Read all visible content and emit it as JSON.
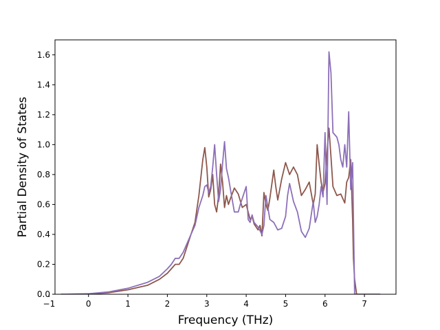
{
  "chart_data": {
    "type": "line",
    "title": "",
    "xlabel": "Frequency (THz)",
    "ylabel": "Partial Density of States",
    "xlim": [
      -0.85,
      7.8
    ],
    "ylim": [
      0.0,
      1.7
    ],
    "xticks": [
      -1,
      0,
      1,
      2,
      3,
      4,
      5,
      6,
      7
    ],
    "yticks": [
      0.0,
      0.2,
      0.4,
      0.6,
      0.8,
      1.0,
      1.2,
      1.4,
      1.6
    ],
    "xtick_labels": [
      "−1",
      "0",
      "1",
      "2",
      "3",
      "4",
      "5",
      "6",
      "7"
    ],
    "ytick_labels": [
      "0.0",
      "0.2",
      "0.4",
      "0.6",
      "0.8",
      "1.0",
      "1.2",
      "1.4",
      "1.6"
    ],
    "grid": false,
    "legend": "none",
    "series": [
      {
        "color": "#8c564b",
        "x": [
          -0.7,
          0.0,
          0.5,
          1.0,
          1.5,
          1.8,
          2.0,
          2.1,
          2.2,
          2.3,
          2.4,
          2.5,
          2.6,
          2.7,
          2.8,
          2.9,
          2.95,
          3.0,
          3.05,
          3.1,
          3.15,
          3.2,
          3.25,
          3.3,
          3.35,
          3.4,
          3.45,
          3.5,
          3.55,
          3.6,
          3.7,
          3.8,
          3.9,
          4.0,
          4.1,
          4.15,
          4.2,
          4.3,
          4.35,
          4.4,
          4.45,
          4.5,
          4.55,
          4.6,
          4.7,
          4.75,
          4.8,
          4.9,
          5.0,
          5.1,
          5.2,
          5.3,
          5.4,
          5.5,
          5.6,
          5.7,
          5.75,
          5.8,
          5.85,
          5.9,
          5.95,
          6.0,
          6.05,
          6.1,
          6.15,
          6.2,
          6.3,
          6.4,
          6.5,
          6.55,
          6.6,
          6.65,
          6.7,
          6.72,
          6.75,
          6.8,
          7.0,
          7.4
        ],
        "y": [
          0.0,
          0.002,
          0.01,
          0.03,
          0.06,
          0.1,
          0.14,
          0.17,
          0.2,
          0.2,
          0.24,
          0.32,
          0.4,
          0.48,
          0.66,
          0.9,
          0.98,
          0.85,
          0.65,
          0.7,
          0.8,
          0.6,
          0.55,
          0.66,
          0.87,
          0.75,
          0.58,
          0.66,
          0.6,
          0.64,
          0.71,
          0.67,
          0.58,
          0.6,
          0.5,
          0.52,
          0.47,
          0.43,
          0.46,
          0.39,
          0.68,
          0.6,
          0.56,
          0.64,
          0.83,
          0.72,
          0.63,
          0.77,
          0.88,
          0.8,
          0.85,
          0.8,
          0.66,
          0.7,
          0.75,
          0.6,
          0.67,
          1.0,
          0.87,
          0.75,
          0.68,
          0.74,
          0.95,
          1.11,
          0.92,
          0.72,
          0.66,
          0.67,
          0.61,
          0.75,
          0.78,
          0.9,
          0.5,
          0.24,
          0.1,
          0.0,
          0.0,
          0.0
        ]
      },
      {
        "color": "#8c6fb8",
        "x": [
          -0.7,
          0.0,
          0.5,
          1.0,
          1.5,
          1.8,
          2.0,
          2.1,
          2.2,
          2.3,
          2.4,
          2.5,
          2.6,
          2.7,
          2.8,
          2.9,
          2.95,
          3.0,
          3.05,
          3.1,
          3.15,
          3.2,
          3.25,
          3.3,
          3.35,
          3.4,
          3.45,
          3.5,
          3.55,
          3.6,
          3.7,
          3.8,
          3.85,
          3.9,
          4.0,
          4.05,
          4.1,
          4.15,
          4.2,
          4.3,
          4.4,
          4.45,
          4.5,
          4.6,
          4.7,
          4.8,
          4.9,
          5.0,
          5.05,
          5.1,
          5.2,
          5.3,
          5.4,
          5.5,
          5.6,
          5.7,
          5.75,
          5.8,
          5.85,
          5.9,
          5.95,
          6.0,
          6.05,
          6.1,
          6.15,
          6.2,
          6.3,
          6.35,
          6.4,
          6.45,
          6.5,
          6.55,
          6.6,
          6.65,
          6.7,
          6.75,
          6.8,
          7.0,
          7.4
        ],
        "y": [
          0.0,
          0.003,
          0.015,
          0.04,
          0.08,
          0.12,
          0.17,
          0.2,
          0.24,
          0.24,
          0.28,
          0.34,
          0.4,
          0.46,
          0.58,
          0.66,
          0.72,
          0.73,
          0.68,
          0.72,
          0.85,
          1.0,
          0.8,
          0.62,
          0.7,
          0.87,
          1.02,
          0.84,
          0.78,
          0.7,
          0.55,
          0.55,
          0.6,
          0.64,
          0.72,
          0.5,
          0.48,
          0.53,
          0.48,
          0.45,
          0.4,
          0.46,
          0.66,
          0.5,
          0.48,
          0.43,
          0.44,
          0.52,
          0.66,
          0.74,
          0.62,
          0.55,
          0.42,
          0.38,
          0.44,
          0.62,
          0.48,
          0.52,
          0.6,
          0.72,
          0.65,
          1.08,
          0.6,
          1.62,
          1.48,
          1.08,
          1.05,
          1.0,
          0.9,
          0.85,
          1.0,
          0.85,
          1.22,
          0.7,
          0.88,
          0.0,
          0.0,
          0.0,
          0.0
        ]
      }
    ]
  }
}
